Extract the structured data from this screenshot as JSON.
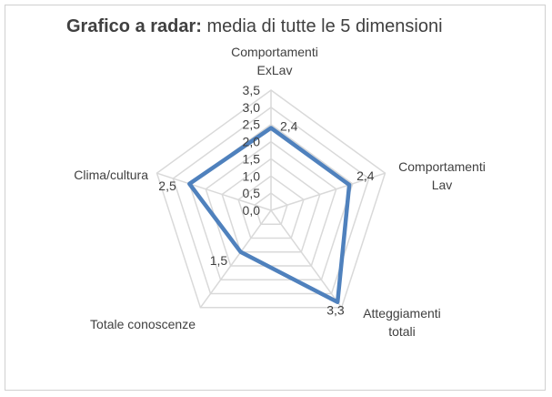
{
  "chart_data": {
    "type": "radar",
    "title_bold": "Grafico a radar:",
    "title_rest": " media di tutte le 5 dimensioni",
    "categories": [
      [
        "Comportamenti",
        "ExLav"
      ],
      [
        "Comportamenti",
        "Lav"
      ],
      [
        "Atteggiamenti",
        "totali"
      ],
      [
        "Totale conoscenze"
      ],
      [
        "Clima/cultura"
      ]
    ],
    "values": [
      2.4,
      2.4,
      3.3,
      1.5,
      2.5
    ],
    "value_labels": [
      "2,4",
      "2,4",
      "3,3",
      "1,5",
      "2,5"
    ],
    "rlim": [
      0,
      3.5
    ],
    "ticks": [
      0,
      0.5,
      1.0,
      1.5,
      2.0,
      2.5,
      3.0,
      3.5
    ],
    "tick_labels": [
      "0,0",
      "0,5",
      "1,0",
      "1,5",
      "2,0",
      "2,5",
      "3,0",
      "3,5"
    ],
    "grid": true,
    "colors": {
      "series": "#4f81bd",
      "grid": "#d9d9d9",
      "text": "#404040"
    }
  }
}
